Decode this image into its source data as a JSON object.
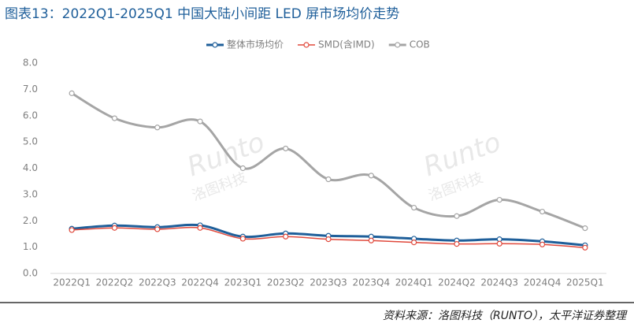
{
  "chart_data": {
    "type": "line",
    "title": "图表13：2022Q1-2025Q1 中国大陆小间距 LED 屏市场均价走势",
    "source": "资料来源：洛图科技（RUNTO），太平洋证券整理",
    "watermark": [
      "Runto",
      "洛图科技"
    ],
    "categories": [
      "2022Q1",
      "2022Q2",
      "2022Q3",
      "2022Q4",
      "2023Q1",
      "2023Q2",
      "2023Q3",
      "2023Q4",
      "2024Q1",
      "2024Q2",
      "2024Q3",
      "2024Q4",
      "2025Q1"
    ],
    "series": [
      {
        "name": "整体市场均价",
        "color": "#1f5f9a",
        "width": 3,
        "values": [
          1.7,
          1.82,
          1.76,
          1.83,
          1.4,
          1.52,
          1.43,
          1.4,
          1.32,
          1.25,
          1.3,
          1.22,
          1.07
        ]
      },
      {
        "name": "SMD(含IMD)",
        "color": "#e0493c",
        "width": 1.5,
        "values": [
          1.65,
          1.73,
          1.68,
          1.73,
          1.32,
          1.4,
          1.3,
          1.25,
          1.18,
          1.12,
          1.13,
          1.1,
          0.98
        ]
      },
      {
        "name": "COB",
        "color": "#a5a5a5",
        "width": 3,
        "values": [
          6.85,
          5.9,
          5.55,
          5.78,
          4.0,
          4.75,
          3.58,
          3.72,
          2.5,
          2.18,
          2.8,
          2.35,
          1.72
        ]
      }
    ],
    "ylim": [
      0,
      8
    ],
    "yticks": [
      {
        "value": 0,
        "label": "0.0"
      },
      {
        "value": 1,
        "label": "1.0"
      },
      {
        "value": 2,
        "label": "2.0"
      },
      {
        "value": 3,
        "label": "3.0"
      },
      {
        "value": 4,
        "label": "4.0"
      },
      {
        "value": 5,
        "label": "5.0"
      },
      {
        "value": 6,
        "label": "6.0"
      },
      {
        "value": 7,
        "label": "7.0"
      },
      {
        "value": 8,
        "label": "8.0"
      }
    ],
    "grid": false,
    "legend": "top"
  }
}
